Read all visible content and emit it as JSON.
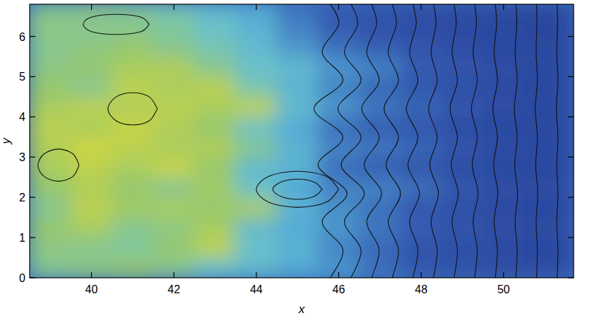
{
  "chart_data": {
    "type": "heatmap",
    "x_label": "x",
    "y_label": "y",
    "xlim": [
      38.5,
      51.7
    ],
    "ylim": [
      0,
      6.8
    ],
    "xticks": [
      40,
      42,
      44,
      46,
      48,
      50
    ],
    "yticks": [
      0,
      1,
      2,
      3,
      4,
      5,
      6
    ],
    "zlim": [
      0,
      1
    ],
    "cells": {
      "x": [
        38.5,
        39.5,
        40.5,
        41.5,
        42.5,
        43.5,
        44.5,
        45.5,
        46.5,
        47.5,
        48.5,
        49.5,
        50.5,
        51.7
      ],
      "y": [
        0,
        0.5,
        1,
        1.5,
        2,
        2.5,
        3,
        3.5,
        4,
        4.5,
        5,
        5.5,
        6,
        6.5,
        6.8
      ],
      "values": [
        [
          0.7,
          0.72,
          0.75,
          0.7,
          0.6,
          0.55,
          0.45,
          0.4,
          0.3,
          0.22,
          0.18,
          0.15,
          0.15
        ],
        [
          0.72,
          0.7,
          0.68,
          0.75,
          0.85,
          0.6,
          0.5,
          0.35,
          0.28,
          0.2,
          0.18,
          0.15,
          0.14
        ],
        [
          0.75,
          0.8,
          0.7,
          0.72,
          0.8,
          0.55,
          0.45,
          0.4,
          0.32,
          0.25,
          0.2,
          0.16,
          0.15
        ],
        [
          0.7,
          0.85,
          0.78,
          0.8,
          0.75,
          0.8,
          0.5,
          0.38,
          0.3,
          0.22,
          0.18,
          0.15,
          0.14
        ],
        [
          0.75,
          0.82,
          0.75,
          0.7,
          0.78,
          0.6,
          0.45,
          0.35,
          0.35,
          0.3,
          0.22,
          0.16,
          0.15
        ],
        [
          0.8,
          0.85,
          0.8,
          0.88,
          0.75,
          0.55,
          0.5,
          0.3,
          0.25,
          0.2,
          0.17,
          0.14,
          0.13
        ],
        [
          0.82,
          0.9,
          0.85,
          0.8,
          0.82,
          0.7,
          0.5,
          0.35,
          0.32,
          0.28,
          0.2,
          0.16,
          0.14
        ],
        [
          0.85,
          0.8,
          0.88,
          0.82,
          0.75,
          0.6,
          0.45,
          0.3,
          0.25,
          0.2,
          0.17,
          0.14,
          0.13
        ],
        [
          0.8,
          0.85,
          0.82,
          0.85,
          0.8,
          0.85,
          0.55,
          0.4,
          0.32,
          0.28,
          0.2,
          0.16,
          0.14
        ],
        [
          0.75,
          0.7,
          0.85,
          0.8,
          0.85,
          0.65,
          0.5,
          0.35,
          0.28,
          0.22,
          0.18,
          0.15,
          0.13
        ],
        [
          0.72,
          0.75,
          0.8,
          0.82,
          0.7,
          0.6,
          0.55,
          0.4,
          0.35,
          0.25,
          0.2,
          0.16,
          0.14
        ],
        [
          0.7,
          0.72,
          0.75,
          0.7,
          0.65,
          0.55,
          0.4,
          0.3,
          0.25,
          0.2,
          0.16,
          0.14,
          0.13
        ],
        [
          0.72,
          0.7,
          0.7,
          0.68,
          0.6,
          0.5,
          0.35,
          0.25,
          0.2,
          0.17,
          0.15,
          0.13,
          0.12
        ],
        [
          0.7,
          0.72,
          0.7,
          0.65,
          0.55,
          0.45,
          0.3,
          0.22,
          0.18,
          0.15,
          0.13,
          0.12,
          0.12
        ]
      ]
    },
    "contours": [
      {
        "x": [
          45.8,
          46.1,
          45.6,
          46.2,
          45.5,
          46.1,
          45.4,
          46.1,
          45.6,
          46.0,
          45.8
        ],
        "y": [
          0,
          0.7,
          1.4,
          2.1,
          2.8,
          3.5,
          4.2,
          4.9,
          5.6,
          6.3,
          6.8
        ]
      },
      {
        "x": [
          46.3,
          46.54,
          46.14,
          46.62,
          46.06,
          46.54,
          45.98,
          46.54,
          46.14,
          46.46,
          46.3
        ],
        "y": [
          0,
          0.7,
          1.4,
          2.1,
          2.8,
          3.5,
          4.2,
          4.9,
          5.6,
          6.3,
          6.8
        ]
      },
      {
        "x": [
          46.8,
          46.98,
          46.68,
          47.04,
          46.62,
          46.98,
          46.56,
          46.98,
          46.68,
          46.92,
          46.8
        ],
        "y": [
          0,
          0.7,
          1.4,
          2.1,
          2.8,
          3.5,
          4.2,
          4.9,
          5.6,
          6.3,
          6.8
        ]
      },
      {
        "x": [
          47.3,
          47.45,
          47.2,
          47.5,
          47.15,
          47.45,
          47.1,
          47.45,
          47.2,
          47.4,
          47.3
        ],
        "y": [
          0,
          0.7,
          1.4,
          2.1,
          2.8,
          3.5,
          4.2,
          4.9,
          5.6,
          6.3,
          6.8
        ]
      },
      {
        "x": [
          47.8,
          47.92,
          47.72,
          47.96,
          47.68,
          47.92,
          47.64,
          47.92,
          47.72,
          47.88,
          47.8
        ],
        "y": [
          0,
          0.7,
          1.4,
          2.1,
          2.8,
          3.5,
          4.2,
          4.9,
          5.6,
          6.3,
          6.8
        ]
      },
      {
        "x": [
          48.3,
          48.39,
          48.24,
          48.42,
          48.21,
          48.39,
          48.18,
          48.39,
          48.24,
          48.36,
          48.3
        ],
        "y": [
          0,
          0.7,
          1.4,
          2.1,
          2.8,
          3.5,
          4.2,
          4.9,
          5.6,
          6.3,
          6.8
        ]
      },
      {
        "x": [
          48.8,
          48.88,
          48.75,
          48.9,
          48.73,
          48.88,
          48.7,
          48.88,
          48.75,
          48.85,
          48.8
        ],
        "y": [
          0,
          0.7,
          1.4,
          2.1,
          2.8,
          3.5,
          4.2,
          4.9,
          5.6,
          6.3,
          6.8
        ]
      },
      {
        "x": [
          49.3,
          49.36,
          49.26,
          49.38,
          49.24,
          49.36,
          49.22,
          49.36,
          49.26,
          49.34,
          49.3
        ],
        "y": [
          0,
          0.7,
          1.4,
          2.1,
          2.8,
          3.5,
          4.2,
          4.9,
          5.6,
          6.3,
          6.8
        ]
      },
      {
        "x": [
          49.8,
          49.85,
          49.77,
          49.86,
          49.76,
          49.85,
          49.74,
          49.85,
          49.77,
          49.83,
          49.8
        ],
        "y": [
          0,
          0.7,
          1.4,
          2.1,
          2.8,
          3.5,
          4.2,
          4.9,
          5.6,
          6.3,
          6.8
        ]
      },
      {
        "x": [
          50.3,
          50.33,
          50.28,
          50.34,
          50.27,
          50.33,
          50.26,
          50.33,
          50.28,
          50.32,
          50.3
        ],
        "y": [
          0,
          0.7,
          1.4,
          2.1,
          2.8,
          3.5,
          4.2,
          4.9,
          5.6,
          6.3,
          6.8
        ]
      },
      {
        "x": [
          50.8,
          50.82,
          50.79,
          50.83,
          50.78,
          50.82,
          50.77,
          50.82,
          50.79,
          50.81,
          50.8
        ],
        "y": [
          0,
          0.7,
          1.4,
          2.1,
          2.8,
          3.5,
          4.2,
          4.9,
          5.6,
          6.3,
          6.8
        ]
      },
      {
        "x": [
          51.3,
          51.32,
          51.29,
          51.32,
          51.29,
          51.32,
          51.28,
          51.32,
          51.29,
          51.31,
          51.3
        ],
        "y": [
          0,
          0.7,
          1.4,
          2.1,
          2.8,
          3.5,
          4.2,
          4.9,
          5.6,
          6.3,
          6.8
        ]
      },
      {
        "x": [
          45.6,
          45.4,
          45,
          44.6,
          44.4,
          44.6,
          45,
          45.4,
          45.6
        ],
        "y": [
          2.2,
          2.38,
          2.45,
          2.38,
          2.2,
          2.02,
          1.95,
          2.02,
          2.2
        ]
      },
      {
        "x": [
          46,
          45.7,
          45,
          44.3,
          44,
          44.3,
          45,
          45.7,
          46
        ],
        "y": [
          2.2,
          2.52,
          2.65,
          2.52,
          2.2,
          1.88,
          1.75,
          1.88,
          2.2
        ]
      },
      {
        "x": [
          41.4,
          41.2,
          40.6,
          40,
          39.8,
          40,
          40.6,
          41.2,
          41.4
        ],
        "y": [
          6.3,
          6.48,
          6.55,
          6.48,
          6.3,
          6.12,
          6.05,
          6.12,
          6.3
        ]
      },
      {
        "x": [
          39.7,
          39.55,
          39.2,
          38.85,
          38.7,
          38.85,
          39.2,
          39.55,
          39.7
        ],
        "y": [
          2.8,
          3.08,
          3.2,
          3.08,
          2.8,
          2.52,
          2.4,
          2.52,
          2.8
        ]
      },
      {
        "x": [
          41.6,
          41.4,
          41,
          40.6,
          40.4,
          40.6,
          41,
          41.4,
          41.6
        ],
        "y": [
          4.2,
          4.5,
          4.6,
          4.5,
          4.2,
          3.9,
          3.8,
          3.9,
          4.2
        ]
      }
    ]
  }
}
